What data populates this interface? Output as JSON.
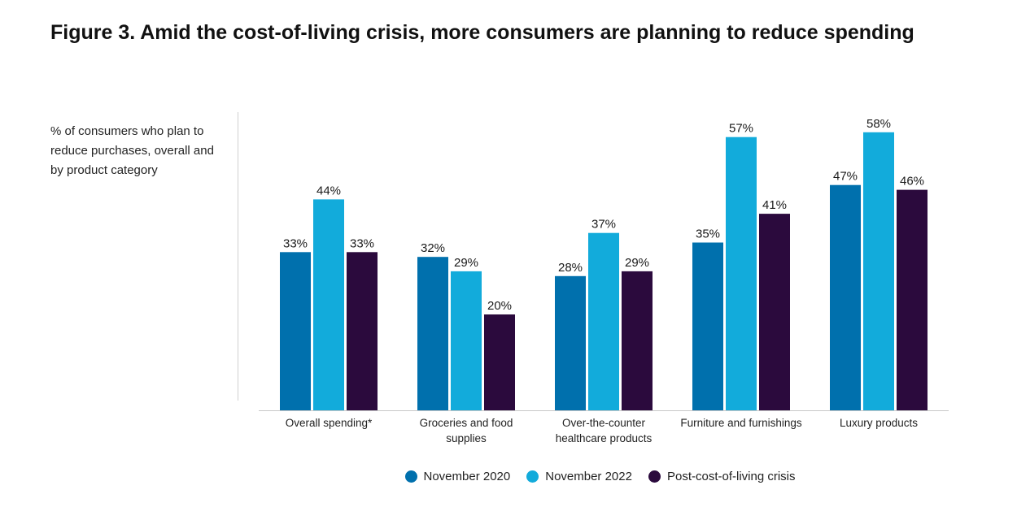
{
  "title": "Figure 3. Amid the cost-of-living crisis, more consumers are planning to reduce spending",
  "subtitle": "% of consumers who plan to reduce purchases, overall and by product category",
  "chart_data": {
    "type": "bar",
    "categories": [
      [
        "Overall spending*"
      ],
      [
        "Groceries and food",
        "supplies"
      ],
      [
        "Over-the-counter",
        "healthcare products"
      ],
      [
        "Furniture and furnishings"
      ],
      [
        "Luxury products"
      ]
    ],
    "series": [
      {
        "name": "November 2020",
        "color": "#0070ad",
        "values": [
          33,
          32,
          28,
          35,
          47
        ],
        "labels": [
          "33%",
          "32%",
          "28%",
          "35%",
          "47%"
        ]
      },
      {
        "name": "November 2022",
        "color": "#12abdb",
        "values": [
          44,
          29,
          37,
          57,
          58
        ],
        "labels": [
          "44%",
          "29%",
          "37%",
          "57%",
          "58%"
        ]
      },
      {
        "name": "Post-cost-of-living crisis",
        "color": "#2b0a3d",
        "values": [
          33,
          20,
          29,
          41,
          46
        ],
        "labels": [
          "33%",
          "20%",
          "29%",
          "41%",
          "46%"
        ]
      }
    ],
    "ylim": [
      0,
      62
    ],
    "grid": false,
    "legend_position": "bottom"
  }
}
